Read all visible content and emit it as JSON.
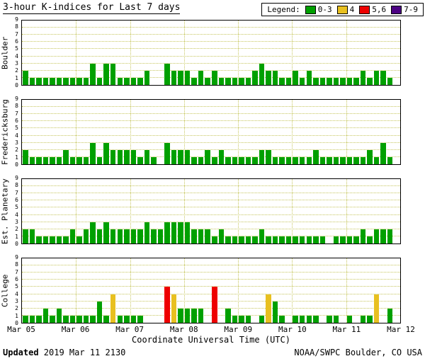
{
  "title": "3-hour K-indices for Last 7 days",
  "legend": {
    "label": "Legend:",
    "items": [
      {
        "label": "0-3",
        "color": "#00a000",
        "name": "green"
      },
      {
        "label": "4",
        "color": "#e8c020",
        "name": "yellow"
      },
      {
        "label": "5,6",
        "color": "#ee0000",
        "name": "red"
      },
      {
        "label": "7-9",
        "color": "#4b0082",
        "name": "purple"
      }
    ]
  },
  "xlabel": "Coordinate Universal Time (UTC)",
  "footer": {
    "updated_label": "Updated",
    "updated_value": " 2019 Mar 11 2130",
    "credit": "NOAA/SWPC Boulder, CO USA"
  },
  "chart_data": {
    "type": "bar",
    "title": "3-hour K-indices for Last 7 days",
    "ylabel_per_panel": true,
    "ylim": [
      0,
      9
    ],
    "yticks": [
      0,
      1,
      2,
      3,
      4,
      5,
      6,
      7,
      8,
      9
    ],
    "x_tick_labels": [
      "Mar 05",
      "Mar 06",
      "Mar 07",
      "Mar 08",
      "Mar 09",
      "Mar 10",
      "Mar 11",
      "Mar 12"
    ],
    "bins_per_day": 8,
    "bin_hours": 3,
    "grid": "dotted",
    "color_rule": {
      "green_max": 3,
      "yellow_max": 4,
      "red_max": 6,
      "purple_max": 9
    },
    "colors": {
      "green": "#00a000",
      "yellow": "#e8c020",
      "red": "#ee0000",
      "purple": "#4b0082"
    },
    "panels": [
      {
        "station": "Boulder",
        "values": [
          2,
          1,
          1,
          1,
          1,
          1,
          1,
          1,
          1,
          1,
          3,
          1,
          3,
          3,
          1,
          1,
          1,
          1,
          2,
          0,
          0,
          3,
          2,
          2,
          2,
          1,
          2,
          1,
          2,
          1,
          1,
          1,
          1,
          1,
          2,
          3,
          2,
          2,
          1,
          1,
          2,
          1,
          2,
          1,
          1,
          1,
          1,
          1,
          1,
          1,
          2,
          1,
          2,
          2,
          1,
          null
        ]
      },
      {
        "station": "Fredericksburg",
        "values": [
          2,
          1,
          1,
          1,
          1,
          1,
          2,
          1,
          1,
          1,
          3,
          1,
          3,
          2,
          2,
          2,
          2,
          1,
          2,
          1,
          0,
          3,
          2,
          2,
          2,
          1,
          1,
          2,
          1,
          2,
          1,
          1,
          1,
          1,
          1,
          2,
          2,
          1,
          1,
          1,
          1,
          1,
          1,
          2,
          1,
          1,
          1,
          1,
          1,
          1,
          1,
          2,
          1,
          3,
          1,
          null
        ]
      },
      {
        "station": "Est. Planetary",
        "values": [
          2,
          2,
          1,
          1,
          1,
          1,
          1,
          2,
          1,
          2,
          3,
          2,
          3,
          2,
          2,
          2,
          2,
          2,
          3,
          2,
          2,
          3,
          3,
          3,
          3,
          2,
          2,
          2,
          1,
          2,
          1,
          1,
          1,
          1,
          1,
          2,
          1,
          1,
          1,
          1,
          1,
          1,
          1,
          1,
          1,
          0,
          1,
          1,
          1,
          1,
          2,
          1,
          2,
          2,
          2,
          null
        ]
      },
      {
        "station": "College",
        "values": [
          1,
          1,
          1,
          2,
          1,
          2,
          1,
          1,
          1,
          1,
          1,
          3,
          1,
          4,
          1,
          1,
          1,
          1,
          0,
          0,
          0,
          5,
          4,
          2,
          2,
          2,
          2,
          0,
          5,
          0,
          2,
          1,
          1,
          1,
          0,
          1,
          4,
          3,
          1,
          0,
          1,
          1,
          1,
          1,
          0,
          1,
          1,
          0,
          1,
          0,
          1,
          1,
          4,
          0,
          2,
          null
        ]
      }
    ]
  }
}
